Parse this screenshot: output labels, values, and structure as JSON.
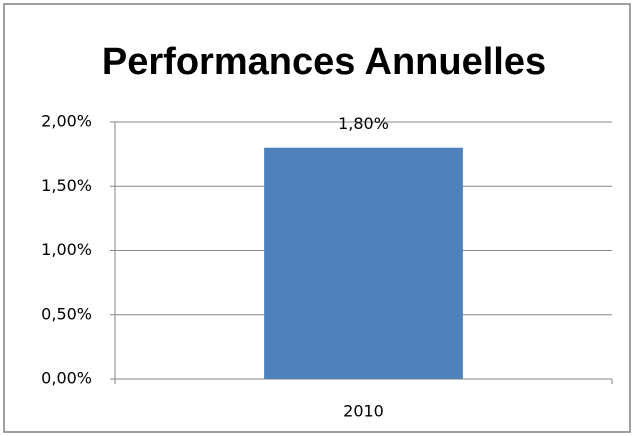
{
  "chart_data": {
    "type": "bar",
    "title": "Performances Annuelles",
    "categories": [
      "2010"
    ],
    "values": [
      1.8
    ],
    "value_labels": [
      "1,80%"
    ],
    "color": "#4f81bd",
    "ylim": [
      0,
      2
    ],
    "yticks": [
      {
        "value": 0,
        "label": "0,00%"
      },
      {
        "value": 0.5,
        "label": "0,50%"
      },
      {
        "value": 1,
        "label": "1,00%"
      },
      {
        "value": 1.5,
        "label": "1,50%"
      },
      {
        "value": 2,
        "label": "2,00%"
      }
    ],
    "grid": true
  }
}
